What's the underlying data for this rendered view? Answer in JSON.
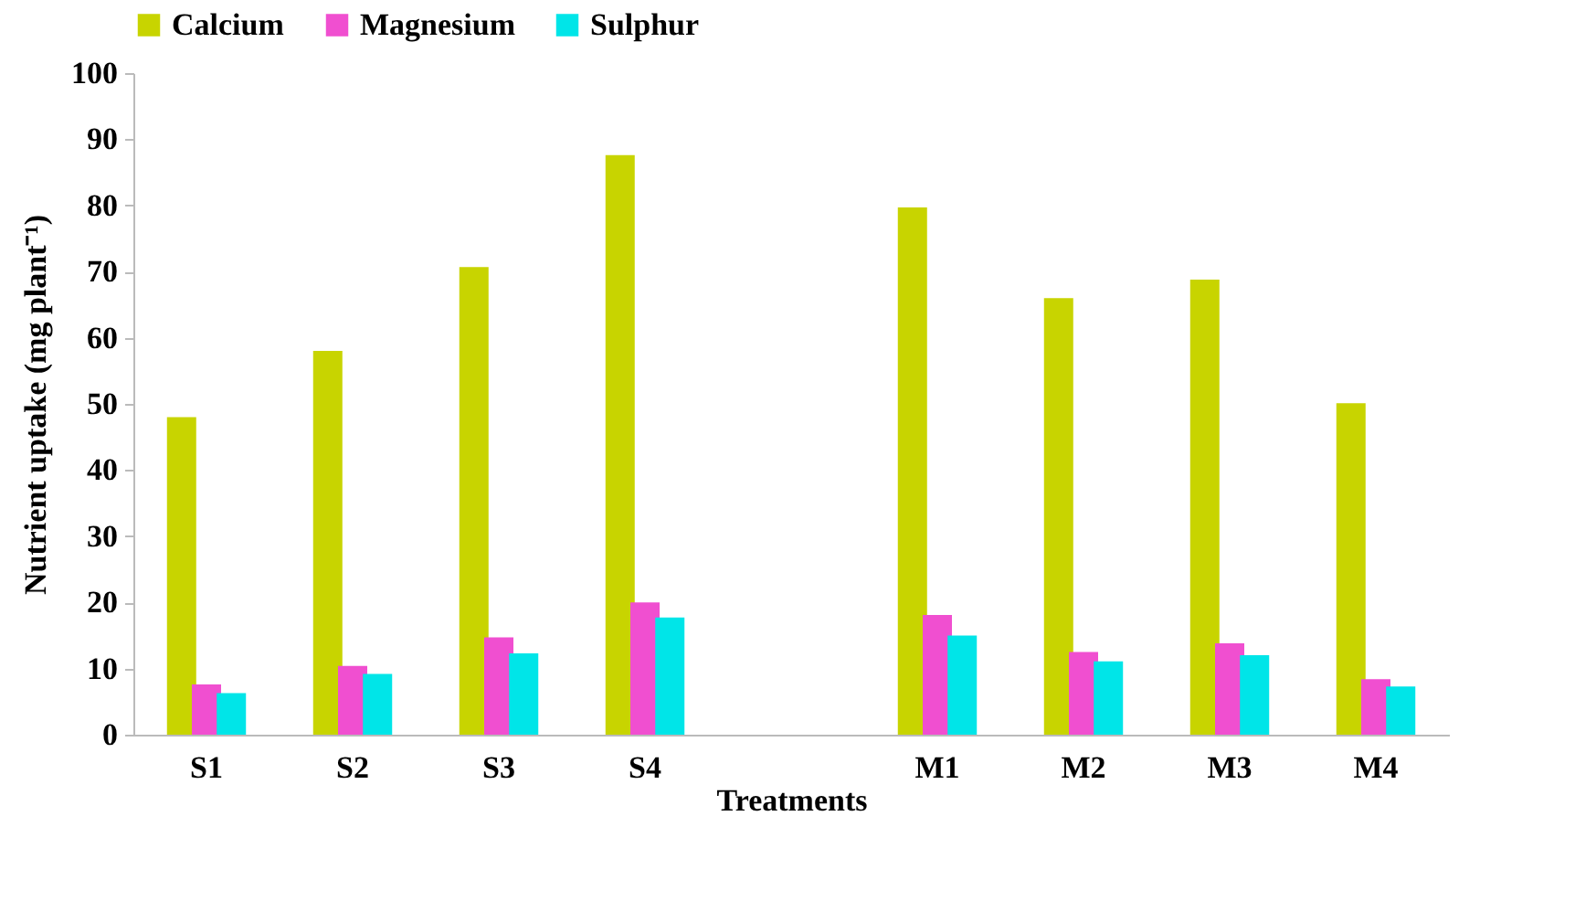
{
  "chart_data": {
    "type": "bar",
    "xlabel": "Treatments",
    "ylabel": "Nutrient uptake (mg plant⁻¹)",
    "categories": [
      "S1",
      "S2",
      "S3",
      "S4",
      null,
      "M1",
      "M2",
      "M3",
      "M4"
    ],
    "series": [
      {
        "name": "Calcium",
        "color": "#c8d400",
        "values": [
          48,
          58,
          70.7,
          87.6,
          null,
          79.7,
          66,
          68.8,
          50.1
        ]
      },
      {
        "name": "Magnesium",
        "color": "#f04fd0",
        "values": [
          7.6,
          10.4,
          14.7,
          20,
          null,
          18.1,
          12.5,
          13.8,
          8.4
        ]
      },
      {
        "name": "Sulphur",
        "color": "#00e5e8",
        "values": [
          6.3,
          9.2,
          12.3,
          17.7,
          null,
          15,
          11.1,
          12,
          7.3
        ]
      }
    ],
    "ylim": [
      0,
      100
    ],
    "yticks": [
      0,
      10,
      20,
      30,
      40,
      50,
      60,
      70,
      80,
      90,
      100
    ],
    "grid": false,
    "legend": "top"
  }
}
